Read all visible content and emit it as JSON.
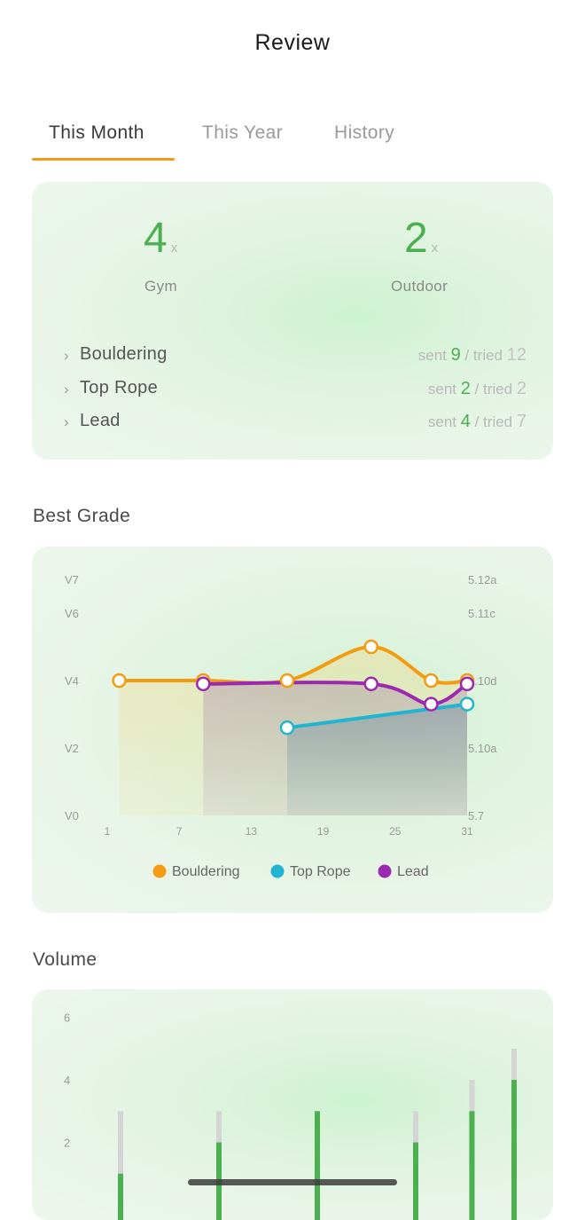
{
  "header": {
    "title": "Review"
  },
  "tabs": [
    {
      "label": "This Month",
      "active": true
    },
    {
      "label": "This Year",
      "active": false
    },
    {
      "label": "History",
      "active": false
    }
  ],
  "summary": {
    "gym": {
      "count": "4",
      "suffix": "x",
      "label": "Gym"
    },
    "outdoor": {
      "count": "2",
      "suffix": "x",
      "label": "Outdoor"
    },
    "rows": [
      {
        "name": "Bouldering",
        "sent_label": "sent",
        "sent": "9",
        "tried_label": "/ tried",
        "tried": "12"
      },
      {
        "name": "Top Rope",
        "sent_label": "sent",
        "sent": "2",
        "tried_label": "/ tried",
        "tried": "2"
      },
      {
        "name": "Lead",
        "sent_label": "sent",
        "sent": "4",
        "tried_label": "/ tried",
        "tried": "7"
      }
    ]
  },
  "best_grade": {
    "title": "Best Grade"
  },
  "volume": {
    "title": "Volume"
  },
  "colors": {
    "accent": "#f19a21",
    "green": "#4caf50",
    "bouldering": "#f39c12",
    "top_rope": "#1fb5d0",
    "lead": "#9c27b0",
    "volume_tried": "#d4d4d4"
  },
  "chart_data": [
    {
      "type": "line",
      "title": "",
      "x_ticks": [
        "1",
        "7",
        "13",
        "19",
        "25",
        "31"
      ],
      "xlim": [
        1,
        31
      ],
      "y_ticks_left": [
        "V0",
        "V2",
        "V4",
        "V6",
        "V7"
      ],
      "y_ticks_right": [
        "5.7",
        "5.10a",
        "5.10d",
        "5.11c",
        "5.12a"
      ],
      "ylim": [
        0,
        7
      ],
      "legend_position": "bottom",
      "series": [
        {
          "name": "Bouldering",
          "color": "#f39c12",
          "x": [
            2,
            9,
            16,
            23,
            28,
            31
          ],
          "y": [
            4,
            4,
            4,
            5,
            4,
            4
          ]
        },
        {
          "name": "Top Rope",
          "color": "#1fb5d0",
          "x": [
            16,
            31
          ],
          "y": [
            2.6,
            3.3
          ]
        },
        {
          "name": "Lead",
          "color": "#9c27b0",
          "x": [
            9,
            23,
            28,
            31
          ],
          "y": [
            3.9,
            3.9,
            3.3,
            3.9
          ]
        }
      ]
    },
    {
      "type": "bar",
      "title": "",
      "y_ticks": [
        "2",
        "4",
        "6"
      ],
      "ylim": [
        0,
        6.2
      ],
      "x": [
        2,
        9,
        16,
        23,
        27,
        30
      ],
      "series": [
        {
          "name": "sent",
          "color": "#4caf50",
          "values": [
            1,
            2,
            3,
            2,
            3,
            4
          ]
        },
        {
          "name": "tried",
          "color": "#d4d4d4",
          "values": [
            3,
            3,
            3,
            3,
            4,
            5
          ]
        }
      ]
    }
  ]
}
